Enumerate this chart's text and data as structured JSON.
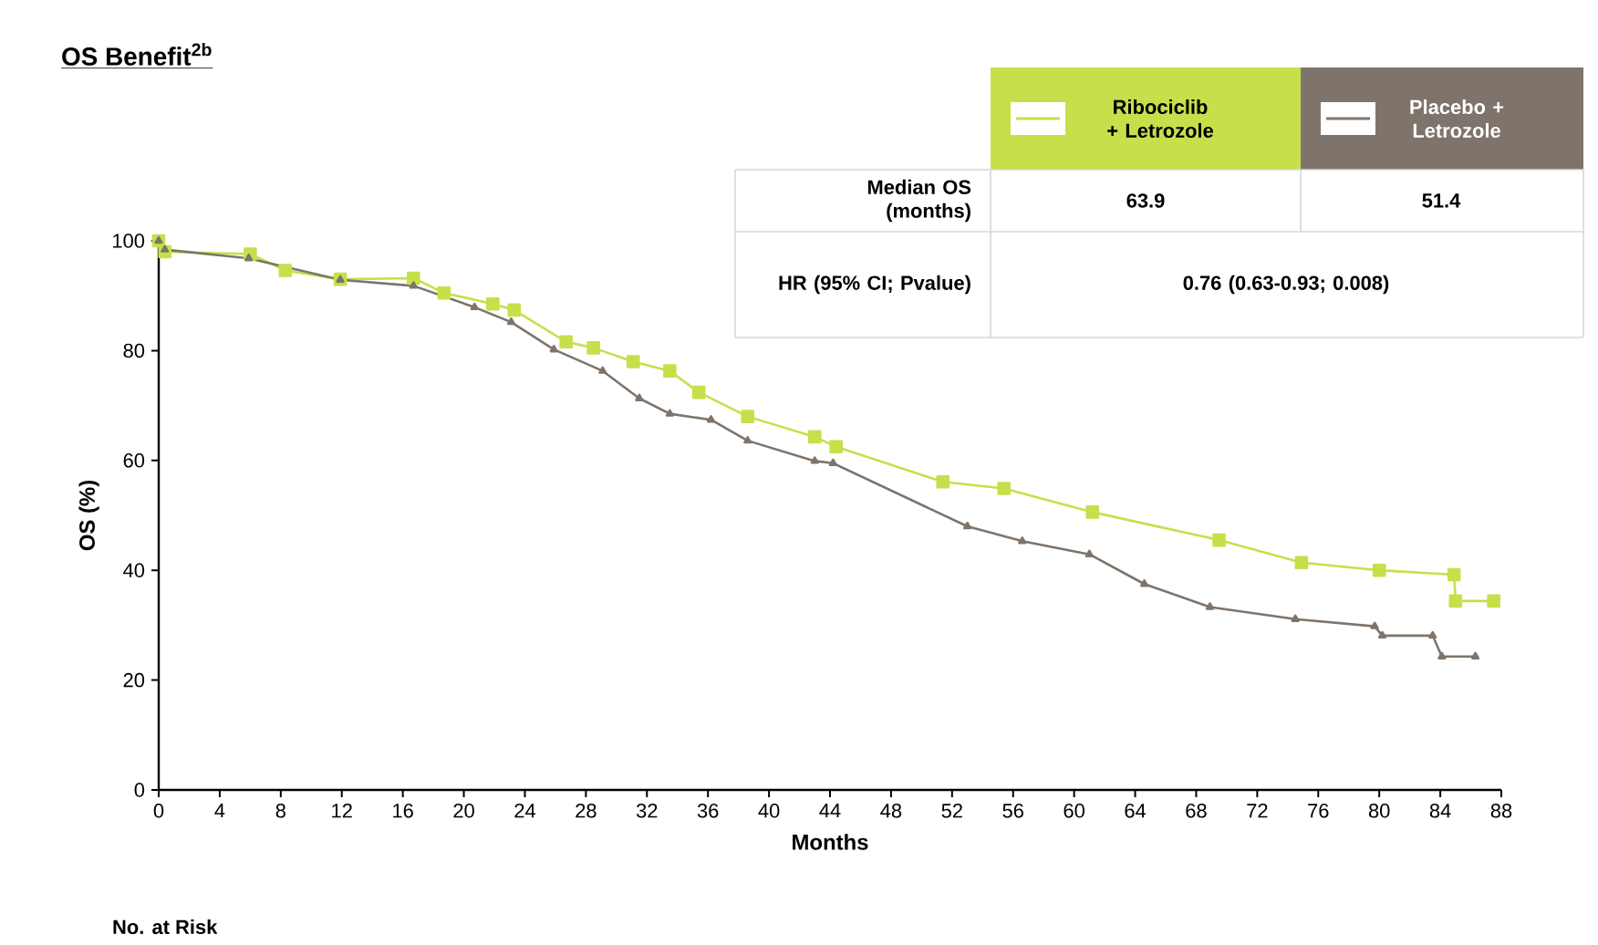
{
  "chart_data": {
    "type": "line",
    "title": "OS Benefit$^{2b}$",
    "xlabel": "Months",
    "ylabel": "OS (%)",
    "xlim": [
      0,
      88
    ],
    "xticks": [
      0,
      4,
      8,
      12,
      16,
      20,
      24,
      28,
      32,
      36,
      40,
      44,
      48,
      52,
      56,
      60,
      64,
      68,
      72,
      76,
      80,
      84,
      88
    ],
    "ylim": [
      0,
      100
    ],
    "yticks": [
      0,
      20,
      40,
      60,
      80,
      100
    ],
    "grid": false,
    "legend": "top right",
    "line_style": "solid",
    "annotations": [
      "Median OS (months)",
      "63.9",
      "51.4",
      "HR (95% CI; Pvalue)",
      "0.76 (0.63-0.93; 0.008)",
      "No. at Risk"
    ],
    "series": [
      {
        "name": "Ribociclib + Letrozole",
        "color": "#c5e04a",
        "marker": "square",
        "x": [
          0,
          0.4,
          6,
          8.3,
          11.9,
          16.7,
          18.7,
          21.9,
          23.3,
          26.7,
          28.5,
          31.1,
          33.5,
          35.4,
          38.6,
          43,
          44.4,
          51.4,
          55.4,
          61.2,
          69.5,
          74.9,
          80,
          84.9,
          85,
          87.5
        ],
        "values": [
          100,
          98,
          97.6,
          94.6,
          93,
          93.2,
          90.5,
          88.5,
          87.4,
          81.6,
          80.5,
          78,
          76.3,
          72.4,
          68,
          64.3,
          62.5,
          56.1,
          54.9,
          50.6,
          45.5,
          41.4,
          40,
          39.2,
          34.4,
          34.4
        ]
      },
      {
        "name": "Placebo + Letrozole",
        "color": "#7f746b",
        "marker": "triangle",
        "x": [
          0,
          0.4,
          5.9,
          11.9,
          16.7,
          20.7,
          23.1,
          25.9,
          29.1,
          31.5,
          33.5,
          36.2,
          38.6,
          43,
          44.2,
          53,
          56.6,
          61,
          64.6,
          68.9,
          74.5,
          79.7,
          80.2,
          83.5,
          84.1,
          86.3
        ],
        "values": [
          100,
          98.4,
          96.8,
          92.9,
          91.8,
          87.9,
          85.2,
          80.2,
          76.3,
          71.3,
          68.5,
          67.4,
          63.6,
          59.9,
          59.5,
          48,
          45.3,
          42.9,
          37.5,
          33.3,
          31.1,
          29.8,
          28.1,
          28.1,
          24.3,
          24.3
        ]
      }
    ]
  }
}
